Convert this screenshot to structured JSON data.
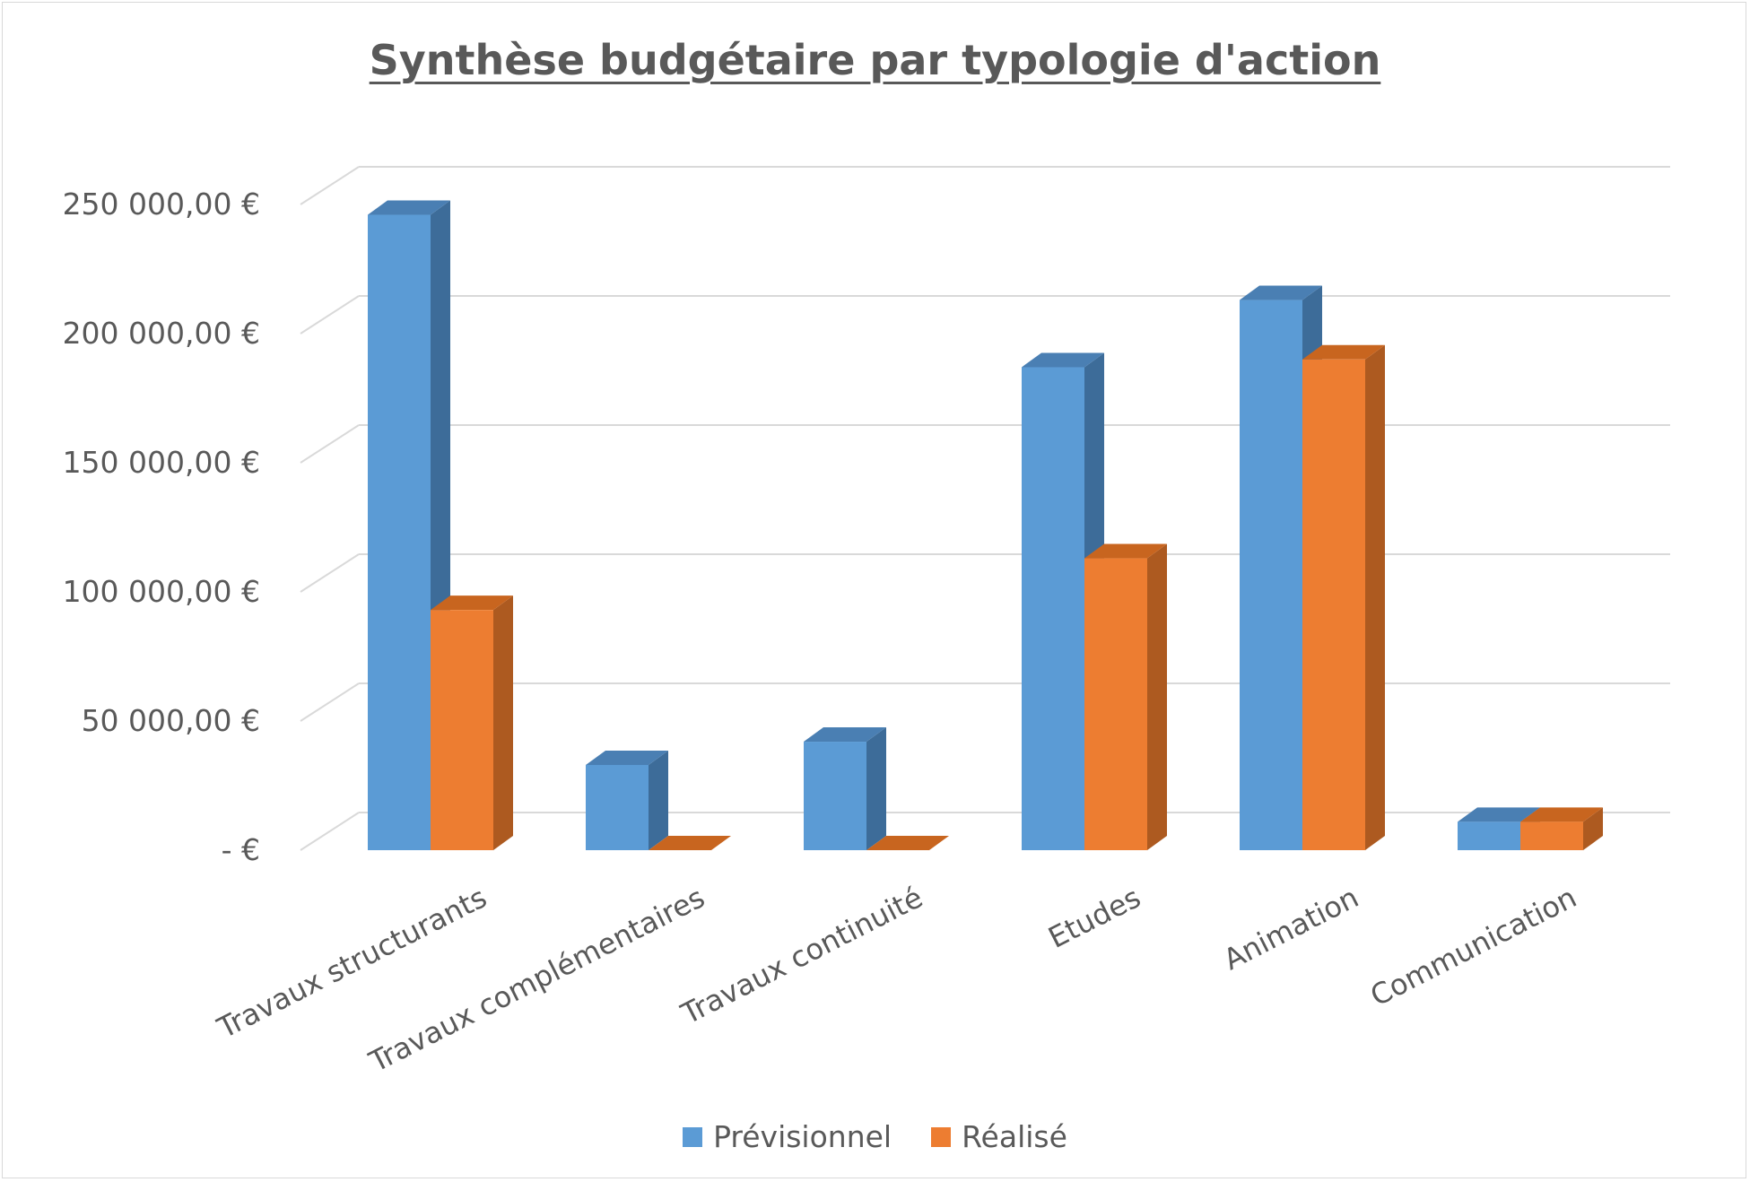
{
  "chart_data": {
    "type": "bar",
    "title": "Synthèse budgétaire par typologie d'action",
    "categories": [
      "Travaux structurants",
      "Travaux complémentaires",
      "Travaux continuité",
      "Etudes",
      "Animation",
      "Communication"
    ],
    "series": [
      {
        "name": "Prévisionnel",
        "color": "#5b9bd5",
        "side_color": "#3d6c99",
        "top_color": "#4a7fb3",
        "values": [
          246000,
          33000,
          42000,
          187000,
          213000,
          11000
        ]
      },
      {
        "name": "Réalisé",
        "color": "#ed7d31",
        "side_color": "#ad5a20",
        "top_color": "#c8651f",
        "values": [
          93000,
          0,
          0,
          113000,
          190000,
          11000
        ]
      }
    ],
    "yticks": [
      {
        "value": 0,
        "label": "-   €"
      },
      {
        "value": 50000,
        "label": "50 000,00 €"
      },
      {
        "value": 100000,
        "label": "100 000,00 €"
      },
      {
        "value": 150000,
        "label": "150 000,00 €"
      },
      {
        "value": 200000,
        "label": "200 000,00 €"
      },
      {
        "value": 250000,
        "label": "250 000,00 €"
      }
    ],
    "ylim": [
      0,
      250000
    ],
    "grid": true,
    "legend_position": "bottom",
    "style": "3d-clustered-column"
  }
}
